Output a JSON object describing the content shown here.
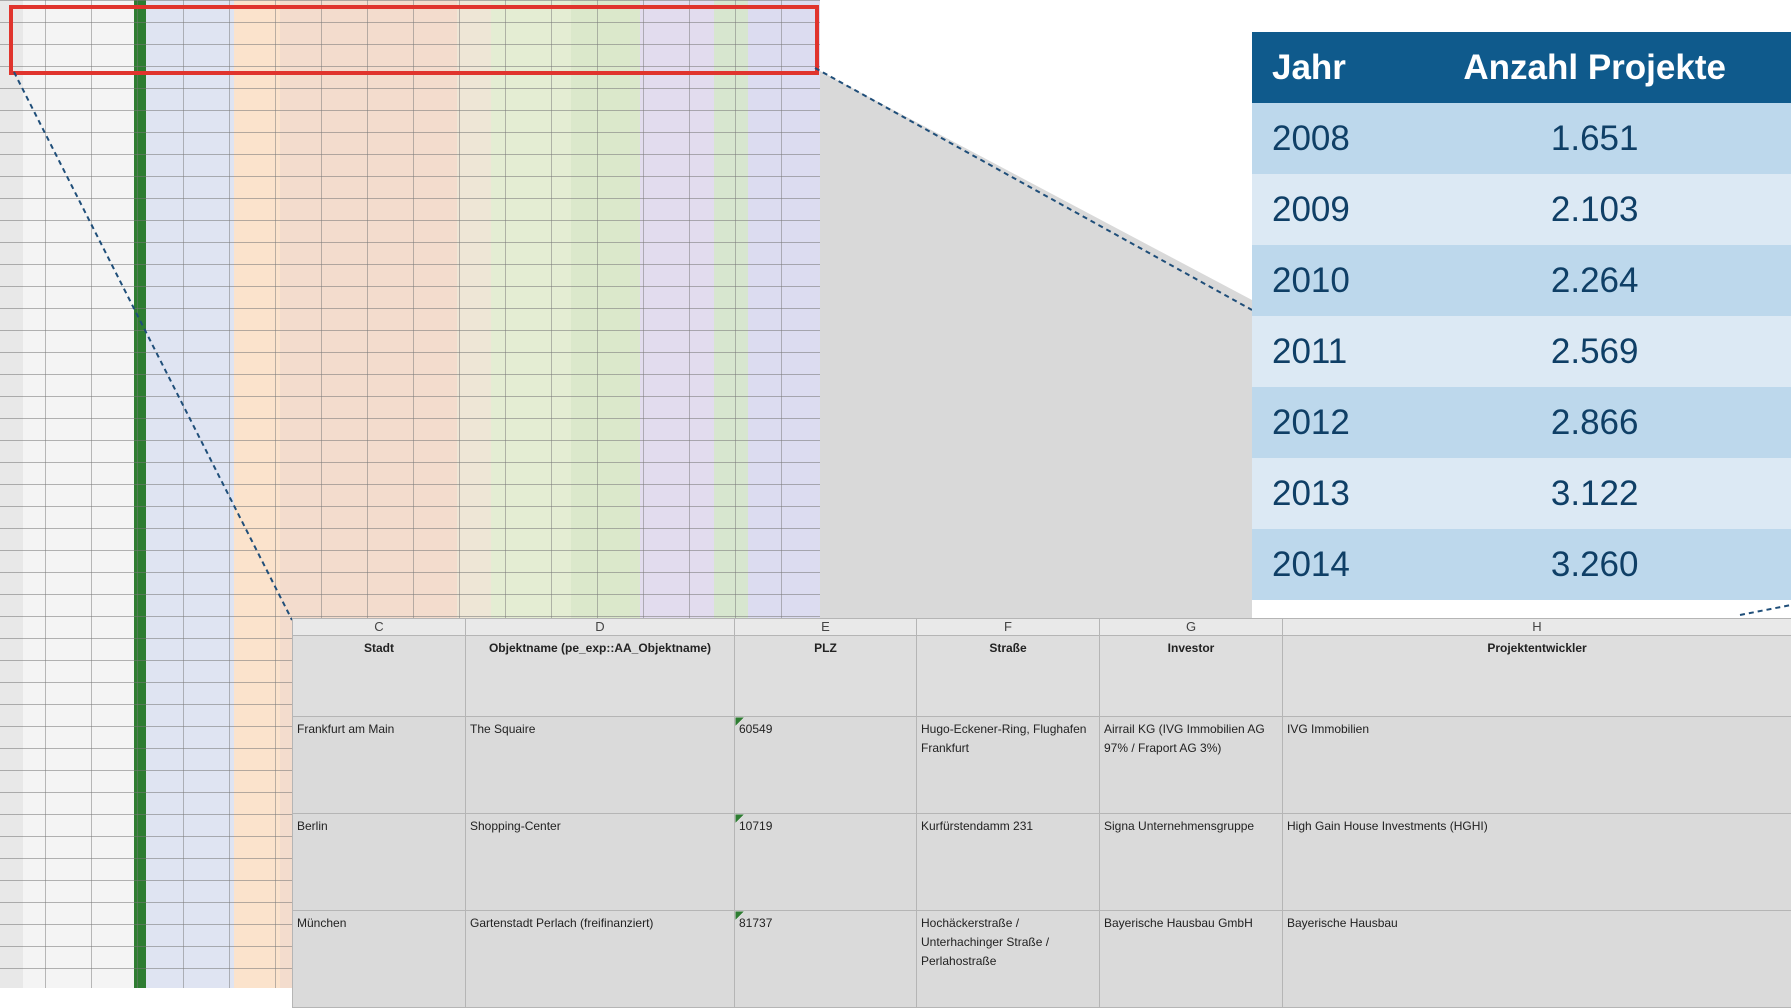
{
  "summary_table": {
    "header": [
      "Jahr",
      "Anzahl Projekte"
    ],
    "rows": [
      [
        "2008",
        "1.651"
      ],
      [
        "2009",
        "2.103"
      ],
      [
        "2010",
        "2.264"
      ],
      [
        "2011",
        "2.569"
      ],
      [
        "2012",
        "2.866"
      ],
      [
        "2013",
        "3.122"
      ],
      [
        "2014",
        "3.260"
      ]
    ]
  },
  "sheet": {
    "column_letters": [
      "C",
      "D",
      "E",
      "F",
      "G",
      "H"
    ],
    "header": [
      "Stadt",
      "Objektname (pe_exp::AA_Objektname)",
      "PLZ",
      "Straße",
      "Investor",
      "Projektentwickler"
    ],
    "rows": [
      [
        "Frankfurt am Main",
        "The Squaire",
        "60549",
        "Hugo-Eckener-Ring, Flughafen Frankfurt",
        "Airrail KG (IVG Immobilien AG 97% / Fraport AG 3%)",
        "IVG Immobilien"
      ],
      [
        "Berlin",
        "Shopping-Center",
        "10719",
        "Kurfürstendamm 231",
        "Signa Unternehmensgruppe",
        "High Gain House Investments (HGHI)"
      ],
      [
        "München",
        "Gartenstadt Perlach (freifinanziert)",
        "81737",
        "Hochäckerstraße / Unterhachinger Straße / Perlahostraße",
        "Bayerische Hausbau GmbH",
        "Bayerische Hausbau"
      ]
    ]
  }
}
